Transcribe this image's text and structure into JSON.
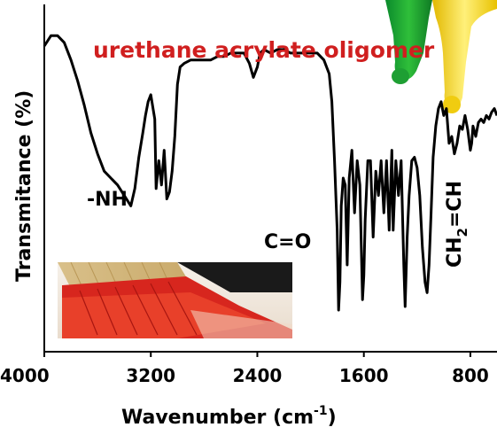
{
  "chart_data": {
    "type": "line",
    "title": "urethane acrylate oligomer",
    "xlabel": "Wavenumber (cm",
    "xlabel_superscript": "-1",
    "xlabel_close": ")",
    "ylabel": "Transmitance (%)",
    "xlim": [
      4000,
      600
    ],
    "x_reversed": true,
    "ylim": [
      0,
      100
    ],
    "y_ticks_shown": false,
    "grid": false,
    "x_ticks": [
      {
        "value": 4000,
        "label": "4000"
      },
      {
        "value": 3200,
        "label": "3200"
      },
      {
        "value": 2400,
        "label": "2400"
      },
      {
        "value": 1600,
        "label": "1600"
      },
      {
        "value": 800,
        "label": "800"
      }
    ],
    "annotations": {
      "nh": "-NH",
      "co": "C=O",
      "vinyl_prefix": "CH",
      "vinyl_subscript": "2",
      "vinyl_suffix": "=CH"
    },
    "series": [
      {
        "color": "#000000",
        "points": [
          [
            4000,
            88
          ],
          [
            3950,
            91
          ],
          [
            3900,
            91
          ],
          [
            3850,
            89
          ],
          [
            3800,
            84
          ],
          [
            3750,
            78
          ],
          [
            3700,
            71
          ],
          [
            3650,
            63
          ],
          [
            3600,
            57
          ],
          [
            3550,
            52
          ],
          [
            3500,
            50
          ],
          [
            3450,
            48
          ],
          [
            3400,
            45
          ],
          [
            3350,
            42
          ],
          [
            3320,
            47
          ],
          [
            3290,
            56
          ],
          [
            3260,
            63
          ],
          [
            3240,
            68
          ],
          [
            3220,
            72
          ],
          [
            3200,
            74
          ],
          [
            3170,
            67
          ],
          [
            3160,
            47
          ],
          [
            3140,
            55
          ],
          [
            3120,
            48
          ],
          [
            3100,
            58
          ],
          [
            3080,
            44
          ],
          [
            3060,
            46
          ],
          [
            3040,
            52
          ],
          [
            3020,
            62
          ],
          [
            3000,
            77
          ],
          [
            2980,
            82
          ],
          [
            2950,
            83
          ],
          [
            2900,
            84
          ],
          [
            2850,
            84
          ],
          [
            2800,
            84
          ],
          [
            2750,
            84
          ],
          [
            2700,
            85
          ],
          [
            2650,
            85
          ],
          [
            2600,
            86
          ],
          [
            2550,
            86
          ],
          [
            2500,
            86
          ],
          [
            2460,
            83
          ],
          [
            2430,
            79
          ],
          [
            2400,
            82
          ],
          [
            2380,
            86
          ],
          [
            2350,
            87
          ],
          [
            2300,
            86
          ],
          [
            2250,
            87
          ],
          [
            2200,
            87
          ],
          [
            2150,
            86
          ],
          [
            2100,
            86
          ],
          [
            2050,
            86
          ],
          [
            2000,
            86
          ],
          [
            1950,
            86
          ],
          [
            1900,
            84
          ],
          [
            1860,
            80
          ],
          [
            1840,
            72
          ],
          [
            1820,
            55
          ],
          [
            1800,
            35
          ],
          [
            1790,
            12
          ],
          [
            1780,
            20
          ],
          [
            1770,
            42
          ],
          [
            1755,
            50
          ],
          [
            1740,
            48
          ],
          [
            1725,
            25
          ],
          [
            1710,
            50
          ],
          [
            1690,
            58
          ],
          [
            1670,
            40
          ],
          [
            1650,
            55
          ],
          [
            1630,
            48
          ],
          [
            1610,
            15
          ],
          [
            1600,
            22
          ],
          [
            1590,
            38
          ],
          [
            1570,
            55
          ],
          [
            1550,
            55
          ],
          [
            1530,
            33
          ],
          [
            1510,
            52
          ],
          [
            1490,
            45
          ],
          [
            1470,
            55
          ],
          [
            1450,
            40
          ],
          [
            1430,
            55
          ],
          [
            1410,
            35
          ],
          [
            1390,
            58
          ],
          [
            1380,
            35
          ],
          [
            1360,
            55
          ],
          [
            1340,
            45
          ],
          [
            1320,
            55
          ],
          [
            1300,
            25
          ],
          [
            1290,
            13
          ],
          [
            1275,
            33
          ],
          [
            1260,
            45
          ],
          [
            1240,
            55
          ],
          [
            1220,
            56
          ],
          [
            1200,
            53
          ],
          [
            1180,
            45
          ],
          [
            1160,
            30
          ],
          [
            1140,
            20
          ],
          [
            1125,
            17
          ],
          [
            1110,
            25
          ],
          [
            1095,
            40
          ],
          [
            1080,
            56
          ],
          [
            1060,
            65
          ],
          [
            1040,
            70
          ],
          [
            1020,
            72
          ],
          [
            1000,
            68
          ],
          [
            980,
            70
          ],
          [
            960,
            60
          ],
          [
            940,
            62
          ],
          [
            920,
            57
          ],
          [
            900,
            60
          ],
          [
            880,
            65
          ],
          [
            860,
            64
          ],
          [
            840,
            68
          ],
          [
            820,
            64
          ],
          [
            800,
            58
          ],
          [
            790,
            60
          ],
          [
            780,
            65
          ],
          [
            760,
            62
          ],
          [
            740,
            66
          ],
          [
            720,
            67
          ],
          [
            700,
            66
          ],
          [
            680,
            68
          ],
          [
            660,
            67
          ],
          [
            640,
            69
          ],
          [
            620,
            70
          ],
          [
            600,
            68
          ]
        ]
      }
    ],
    "inset_image": "red paintbrush applying red coating",
    "corner_image": "green and yellow paint drips"
  }
}
